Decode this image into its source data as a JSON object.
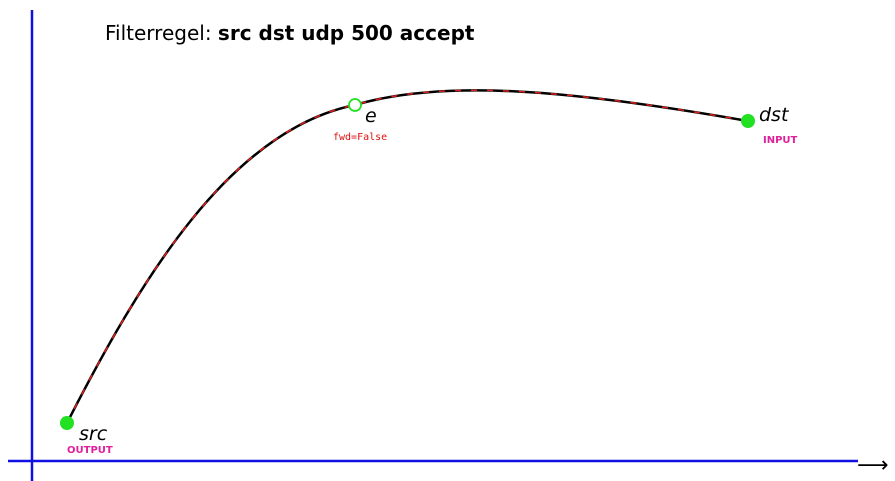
{
  "title": {
    "prefix": "Filterregel:",
    "rule": "src dst udp 500 accept"
  },
  "axis_arrow": "⟶",
  "nodes": [
    {
      "label": "src",
      "tag": "OUTPUT"
    },
    {
      "label": "e",
      "tag": "fwd=False"
    },
    {
      "label": "dst",
      "tag": "INPUT"
    }
  ]
}
